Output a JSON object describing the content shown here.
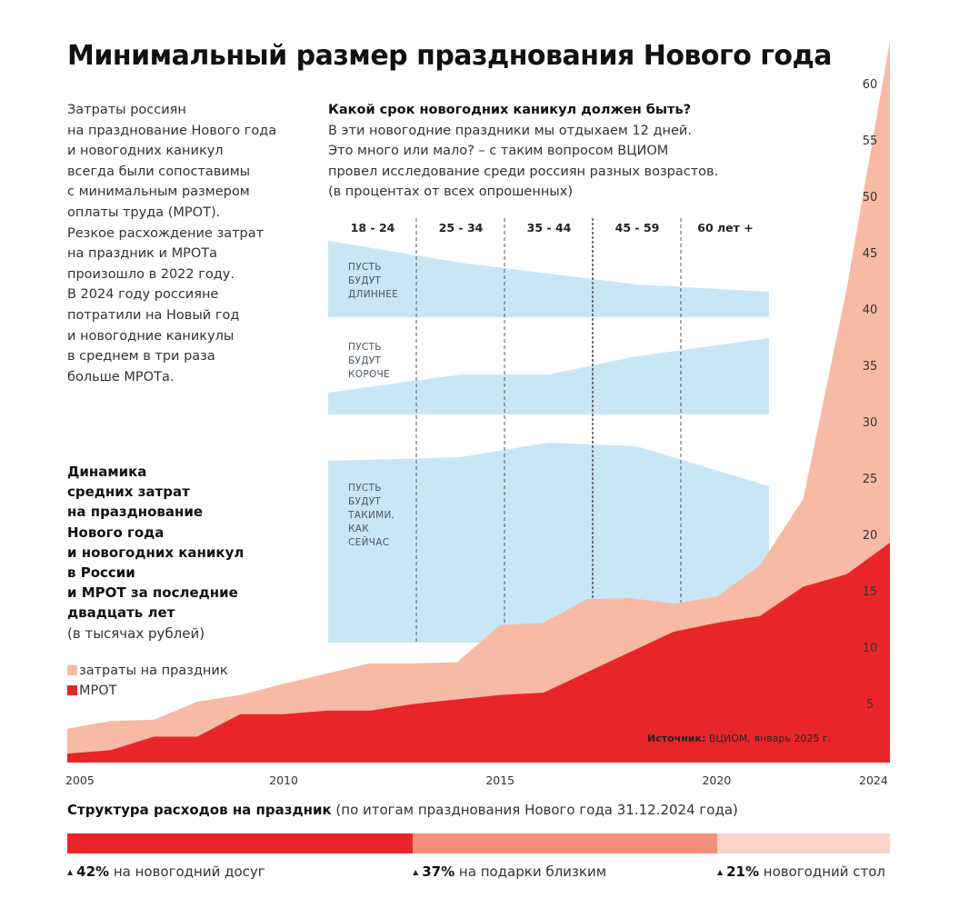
{
  "title": "Минимальный размер празднования Нового года",
  "intro_lines": [
    "Затраты россиян",
    "на празднование Нового года",
    "и новогодних каникул",
    "всегда были сопоставимы",
    "с минимальным размером",
    "оплаты труда (МРОТ).",
    "Резкое расхождение затрат",
    "на праздник и МРОТа",
    "произошло в 2022 году.",
    "В 2024 году россияне",
    "потратили на Новый год",
    "и новогодние каникулы",
    "в среднем в три раза",
    "больше МРОТа."
  ],
  "survey": {
    "question": "Какой срок новогодних каникул должен быть?",
    "lines": [
      "В эти новогодние праздники мы отдыхаем 12 дней.",
      "Это много или мало? – с таким вопросом ВЦИОМ",
      "провел исследование среди россиян разных возрастов.",
      "(в процентах от всех опрошенных)"
    ]
  },
  "dynamics": {
    "title_lines": [
      "Динамика",
      "средних затрат",
      "на празднование",
      "Нового года",
      "и новогодних каникул",
      "в России",
      "и МРОТ за последние",
      "двадцать лет"
    ],
    "unit": "(в тысячах рублей)"
  },
  "legend": {
    "spending": "затраты на праздник",
    "mrot": "МРОТ"
  },
  "source": {
    "label": "Источник:",
    "text": " ВЦИОМ, январь 2025 г."
  },
  "structure": {
    "title": "Структура расходов на праздник",
    "subtitle": " (по итогам празднования Нового года 31.12.2024 года)",
    "segments": [
      {
        "percent": 42,
        "pct_label": "42%",
        "label": " на новогодний досуг",
        "color": "#e8262a"
      },
      {
        "percent": 37,
        "pct_label": "37%",
        "label": " на подарки близким",
        "color": "#f0907a"
      },
      {
        "percent": 21,
        "pct_label": "21%",
        "label": " новогодний стол",
        "color": "#f9d3c6"
      }
    ]
  },
  "colors": {
    "mrot": "#e8262a",
    "spending": "#f7bba5",
    "survey_band": "#c9e6f6"
  },
  "chart_data": [
    {
      "type": "area",
      "series": [
        {
          "name": "затраты на праздник",
          "x": [
            2005,
            2006,
            2007,
            2008,
            2009,
            2010,
            2011,
            2012,
            2013,
            2014,
            2015,
            2016,
            2017,
            2018,
            2019,
            2020,
            2021,
            2022,
            2023,
            2024
          ],
          "values": [
            3.0,
            3.7,
            3.8,
            5.4,
            6.0,
            7.0,
            7.9,
            8.8,
            8.8,
            8.9,
            12.2,
            12.4,
            14.5,
            14.6,
            14.1,
            14.7,
            17.5,
            23.4,
            42.0,
            64.0
          ]
        },
        {
          "name": "МРОТ",
          "x": [
            2005,
            2006,
            2007,
            2008,
            2009,
            2010,
            2011,
            2012,
            2013,
            2014,
            2015,
            2016,
            2017,
            2018,
            2019,
            2020,
            2021,
            2022,
            2023,
            2024
          ],
          "values": [
            0.8,
            1.1,
            2.3,
            2.3,
            4.3,
            4.3,
            4.6,
            4.6,
            5.2,
            5.6,
            6.0,
            6.2,
            8.0,
            9.8,
            11.6,
            12.4,
            13.0,
            15.6,
            16.7,
            19.5
          ]
        }
      ],
      "xlabel": "",
      "ylabel": "",
      "xlim": [
        2005,
        2024
      ],
      "ylim": [
        0,
        64
      ],
      "x_ticks": [
        2005,
        2010,
        2015,
        2020,
        2024
      ],
      "y_ticks": [
        5,
        10,
        15,
        20,
        25,
        30,
        35,
        40,
        45,
        50,
        55,
        60
      ],
      "grid": false,
      "legend": "left"
    },
    {
      "type": "area",
      "categories": [
        "18 - 24",
        "25 - 34",
        "35 - 44",
        "45 - 59",
        "60 лет +"
      ],
      "series": [
        {
          "name": "ПУСТЬ БУДУТ ДЛИННЕЕ",
          "label_lines": [
            "ПУСТЬ",
            "БУДУТ",
            "ДЛИННЕЕ"
          ],
          "values": [
            21,
            15,
            12,
            9,
            7
          ]
        },
        {
          "name": "ПУСТЬ БУДУТ КОРОЧЕ",
          "label_lines": [
            "ПУСТЬ",
            "БУДУТ",
            "КОРОЧЕ"
          ],
          "values": [
            6,
            11,
            11,
            16,
            21
          ]
        },
        {
          "name": "ПУСТЬ БУДУТ ТАКИМИ, КАК СЕЙЧАС",
          "label_lines": [
            "ПУСТЬ",
            "БУДУТ",
            "ТАКИМИ,",
            "КАК",
            "СЕЙЧАС"
          ],
          "values": [
            50,
            51,
            55,
            54,
            43
          ]
        }
      ],
      "grid": false
    }
  ]
}
